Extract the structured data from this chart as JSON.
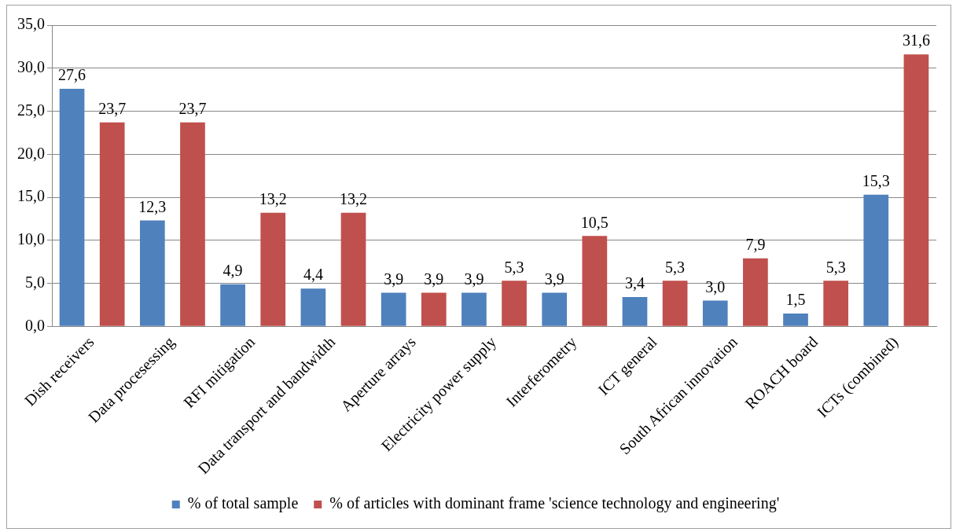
{
  "chart_data": {
    "type": "bar",
    "categories": [
      "Dish receivers",
      "Data procesessing",
      "RFI mitigation",
      "Data transport and bandwidth",
      "Aperture arrays",
      "Electricity power supply",
      "Interferometry",
      "ICT general",
      "South African innovation",
      "ROACH board",
      "ICTs (combined)"
    ],
    "series": [
      {
        "name": "% of total sample",
        "color": "#4f81bd",
        "values": [
          27.6,
          12.3,
          4.9,
          4.4,
          3.9,
          3.9,
          3.9,
          3.4,
          3.0,
          1.5,
          15.3
        ],
        "value_labels": [
          "27,6",
          "12,3",
          "4,9",
          "4,4",
          "3,9",
          "3,9",
          "3,9",
          "3,4",
          "3,0",
          "1,5",
          "15,3"
        ]
      },
      {
        "name": "% of articles with dominant frame 'science technology and engineering'",
        "color": "#c0504d",
        "values": [
          23.7,
          23.7,
          13.2,
          13.2,
          3.9,
          5.3,
          10.5,
          5.3,
          7.9,
          5.3,
          31.6
        ],
        "value_labels": [
          "23,7",
          "23,7",
          "13,2",
          "13,2",
          "3,9",
          "5,3",
          "10,5",
          "5,3",
          "7,9",
          "5,3",
          "31,6"
        ]
      }
    ],
    "ylim": [
      0,
      35
    ],
    "yticks": [
      {
        "value": 0,
        "label": "0,0"
      },
      {
        "value": 5,
        "label": "5,0"
      },
      {
        "value": 10,
        "label": "10,0"
      },
      {
        "value": 15,
        "label": "15,0"
      },
      {
        "value": 20,
        "label": "20,0"
      },
      {
        "value": 25,
        "label": "25,0"
      },
      {
        "value": 30,
        "label": "30,0"
      },
      {
        "value": 35,
        "label": "35,0"
      }
    ],
    "grid": "y",
    "legend": "bottom"
  }
}
